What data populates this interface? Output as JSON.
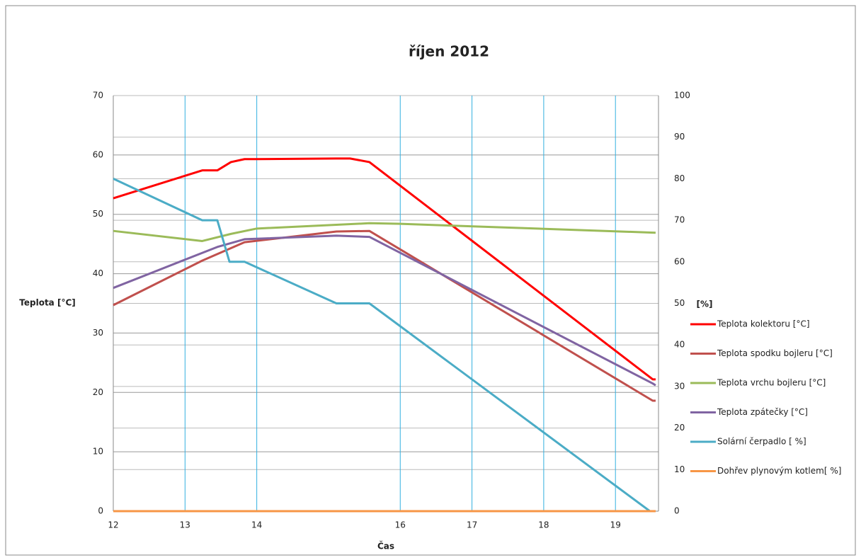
{
  "chart_data": {
    "type": "line",
    "title": "říjen  2012",
    "xlabel": "Čas",
    "ylabel": "Teplota [°C]",
    "y2label": "[%]",
    "xlim": [
      12,
      19.6
    ],
    "xticks": [
      12,
      13,
      14,
      16,
      17,
      18,
      19
    ],
    "ylim": [
      0,
      70
    ],
    "yticks": [
      0,
      10,
      20,
      30,
      40,
      50,
      60,
      70
    ],
    "y2lim": [
      0,
      100
    ],
    "y2ticks": [
      0,
      10,
      20,
      30,
      40,
      50,
      60,
      70,
      80,
      90,
      100
    ],
    "grid": true,
    "legend": "right",
    "series": [
      {
        "name": "Teplota kolektoru [°C]",
        "color": "#ff0000",
        "x": [
          12,
          13.24,
          13.45,
          13.64,
          13.83,
          14.0,
          15.11,
          15.3,
          15.57,
          19.52,
          19.56
        ],
        "values": [
          52.7,
          57.4,
          57.4,
          58.8,
          59.3,
          59.3,
          59.4,
          59.4,
          58.8,
          22.2,
          22.2
        ]
      },
      {
        "name": "Teplota spodku bojleru [°C]",
        "color": "#c0504d",
        "x": [
          12,
          13.24,
          13.83,
          15.11,
          15.57,
          19.52,
          19.56
        ],
        "values": [
          34.7,
          42.2,
          45.3,
          47.1,
          47.2,
          18.6,
          18.6
        ]
      },
      {
        "name": "Teplota vrchu bojleru [°C]",
        "color": "#9bbb59",
        "x": [
          12,
          13.24,
          13.64,
          14.0,
          15.57,
          16.0,
          19.56
        ],
        "values": [
          47.2,
          45.5,
          46.7,
          47.6,
          48.5,
          48.4,
          46.9
        ]
      },
      {
        "name": "Teplota zpátečky [°C]",
        "color": "#8064a2",
        "x": [
          12,
          13.45,
          13.83,
          15.11,
          15.57,
          19.52,
          19.56
        ],
        "values": [
          37.6,
          44.5,
          45.8,
          46.4,
          46.2,
          21.5,
          21.2
        ]
      },
      {
        "name": "Solární čerpadlo [ %]",
        "color": "#4bacc6",
        "axis": "y2",
        "x": [
          12,
          13.24,
          13.45,
          13.62,
          13.83,
          15.11,
          15.57,
          19.48
        ],
        "values": [
          80,
          70,
          70,
          60,
          60,
          50,
          50,
          0
        ]
      },
      {
        "name": "Dohřev plynovým kotlem[ %]",
        "color": "#f79646",
        "axis": "y2",
        "x": [
          12,
          19.56
        ],
        "values": [
          0,
          0
        ]
      }
    ]
  }
}
